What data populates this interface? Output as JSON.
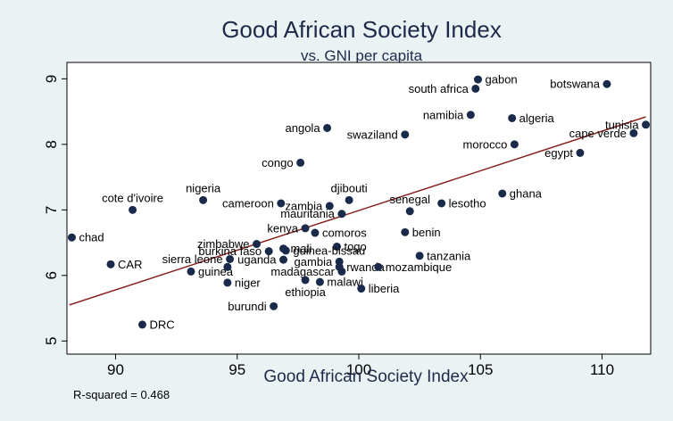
{
  "chart_data": {
    "type": "scatter",
    "title": "Good African Society Index",
    "subtitle": "vs. GNI per capita",
    "xlabel": "Good African Society Index",
    "ylabel": "",
    "xlim": [
      88,
      112
    ],
    "ylim": [
      4.8,
      9.25
    ],
    "xticks": [
      90,
      95,
      100,
      105,
      110
    ],
    "yticks": [
      5,
      6,
      7,
      8,
      9
    ],
    "grid": false,
    "legend": "none",
    "note": "R-squared = 0.468",
    "colors": {
      "marker": "#1a2a4a",
      "fit_line": "#8b2323",
      "plot_bg": "#ffffff",
      "outer_bg": "#eaf2f3"
    },
    "fit_line": {
      "x": [
        88.1,
        111.8
      ],
      "y": [
        5.55,
        8.42
      ]
    },
    "points": [
      {
        "label": "gabon",
        "x": 104.9,
        "y": 8.99,
        "pos": "right"
      },
      {
        "label": "botswana",
        "x": 110.2,
        "y": 8.92,
        "pos": "left"
      },
      {
        "label": "south africa",
        "x": 104.8,
        "y": 8.85,
        "pos": "left"
      },
      {
        "label": "namibia",
        "x": 104.6,
        "y": 8.45,
        "pos": "left"
      },
      {
        "label": "algeria",
        "x": 106.3,
        "y": 8.4,
        "pos": "right"
      },
      {
        "label": "tunisia",
        "x": 111.8,
        "y": 8.3,
        "pos": "left"
      },
      {
        "label": "angola",
        "x": 98.7,
        "y": 8.25,
        "pos": "left"
      },
      {
        "label": "swaziland",
        "x": 101.9,
        "y": 8.15,
        "pos": "left"
      },
      {
        "label": "cape verde",
        "x": 111.3,
        "y": 8.17,
        "pos": "left"
      },
      {
        "label": "morocco",
        "x": 106.4,
        "y": 8.0,
        "pos": "left"
      },
      {
        "label": "egypt",
        "x": 109.1,
        "y": 7.87,
        "pos": "left"
      },
      {
        "label": "congo",
        "x": 97.6,
        "y": 7.72,
        "pos": "left"
      },
      {
        "label": "ghana",
        "x": 105.9,
        "y": 7.25,
        "pos": "right"
      },
      {
        "label": "djibouti",
        "x": 99.6,
        "y": 7.15,
        "pos": "above"
      },
      {
        "label": "nigeria",
        "x": 93.6,
        "y": 7.15,
        "pos": "above"
      },
      {
        "label": "cameroon",
        "x": 96.8,
        "y": 7.1,
        "pos": "left"
      },
      {
        "label": "lesotho",
        "x": 103.4,
        "y": 7.1,
        "pos": "right"
      },
      {
        "label": "senegal",
        "x": 102.1,
        "y": 6.98,
        "pos": "above"
      },
      {
        "label": "zambia",
        "x": 98.8,
        "y": 7.06,
        "pos": "left"
      },
      {
        "label": "cote d'ivoire",
        "x": 90.7,
        "y": 7.0,
        "pos": "above"
      },
      {
        "label": "mauritania",
        "x": 99.3,
        "y": 6.94,
        "pos": "left"
      },
      {
        "label": "kenya",
        "x": 97.8,
        "y": 6.72,
        "pos": "left"
      },
      {
        "label": "comoros",
        "x": 98.2,
        "y": 6.65,
        "pos": "right"
      },
      {
        "label": "benin",
        "x": 101.9,
        "y": 6.66,
        "pos": "right"
      },
      {
        "label": "chad",
        "x": 88.2,
        "y": 6.58,
        "pos": "right"
      },
      {
        "label": "zimbabwe",
        "x": 95.8,
        "y": 6.48,
        "pos": "left"
      },
      {
        "label": "togo",
        "x": 99.1,
        "y": 6.44,
        "pos": "right"
      },
      {
        "label": "mali",
        "x": 96.9,
        "y": 6.41,
        "pos": "right"
      },
      {
        "label": "burkina faso",
        "x": 96.3,
        "y": 6.37,
        "pos": "left"
      },
      {
        "label": "guinea-bissau",
        "x": 97.0,
        "y": 6.38,
        "pos": "right"
      },
      {
        "label": "tanzania",
        "x": 102.5,
        "y": 6.3,
        "pos": "right"
      },
      {
        "label": "sierra leone",
        "x": 94.7,
        "y": 6.25,
        "pos": "left"
      },
      {
        "label": "uganda",
        "x": 96.9,
        "y": 6.24,
        "pos": "left"
      },
      {
        "label": "gambia",
        "x": 99.2,
        "y": 6.21,
        "pos": "left"
      },
      {
        "label": "rwanda",
        "x": 99.2,
        "y": 6.13,
        "pos": "right"
      },
      {
        "label": "mozambique",
        "x": 100.8,
        "y": 6.13,
        "pos": "right"
      },
      {
        "label": "CAR",
        "x": 89.8,
        "y": 6.17,
        "pos": "right"
      },
      {
        "label": "guinea",
        "x": 93.1,
        "y": 6.06,
        "pos": "right"
      },
      {
        "label": "madagascar",
        "x": 99.3,
        "y": 6.06,
        "pos": "left"
      },
      {
        "label": "niger",
        "x": 94.6,
        "y": 5.89,
        "pos": "right"
      },
      {
        "label": "malawi",
        "x": 98.4,
        "y": 5.9,
        "pos": "right"
      },
      {
        "label": "liberia",
        "x": 100.1,
        "y": 5.8,
        "pos": "right"
      },
      {
        "label": "ethiopia",
        "x": 97.8,
        "y": 5.93,
        "pos": "below"
      },
      {
        "label": "burundi",
        "x": 96.5,
        "y": 5.53,
        "pos": "left"
      },
      {
        "label": "DRC",
        "x": 91.1,
        "y": 5.25,
        "pos": "right"
      },
      {
        "label": "sierra leone",
        "x": 94.6,
        "y": 6.13,
        "pos": "none"
      }
    ]
  }
}
